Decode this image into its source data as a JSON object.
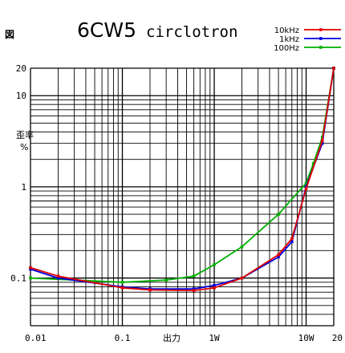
{
  "corner_mark": "図",
  "colors": {
    "10kHz": "#e00000",
    "1kHz": "#0000e0",
    "100Hz": "#00b000"
  },
  "chart_data": {
    "type": "line",
    "title": "6CW5",
    "subtitle": "circlotron",
    "xlabel": "出力",
    "ylabel_top": "歪率",
    "ylabel_unit": "%",
    "xscale": "log",
    "yscale": "log",
    "xlim": [
      0.01,
      20
    ],
    "ylim": [
      0.03,
      20
    ],
    "grid": true,
    "legend_position": "top-right",
    "x_tick_labels": [
      {
        "v": 0.01,
        "t": "0.01"
      },
      {
        "v": 0.1,
        "t": "0.1"
      },
      {
        "v": 1,
        "t": "1W"
      },
      {
        "v": 10,
        "t": "10W"
      },
      {
        "v": 20,
        "t": "20"
      }
    ],
    "y_tick_labels": [
      {
        "v": 0.1,
        "t": "0.1"
      },
      {
        "v": 1,
        "t": "1"
      },
      {
        "v": 10,
        "t": "10"
      },
      {
        "v": 20,
        "t": "20"
      }
    ],
    "series": [
      {
        "name": "10kHz",
        "color": "#e00000",
        "x": [
          0.01,
          0.02,
          0.1,
          0.2,
          0.6,
          1,
          2,
          5,
          7,
          10,
          15,
          20
        ],
        "y": [
          0.13,
          0.105,
          0.078,
          0.074,
          0.073,
          0.078,
          0.1,
          0.18,
          0.27,
          0.95,
          3.2,
          20
        ]
      },
      {
        "name": "1kHz",
        "color": "#0000e0",
        "x": [
          0.01,
          0.02,
          0.1,
          0.2,
          0.6,
          1,
          2,
          5,
          7,
          10,
          15,
          20
        ],
        "y": [
          0.125,
          0.1,
          0.08,
          0.076,
          0.076,
          0.083,
          0.1,
          0.17,
          0.25,
          1.0,
          3.0,
          20
        ]
      },
      {
        "name": "100Hz",
        "color": "#00b000",
        "x": [
          0.01,
          0.1,
          0.3,
          0.6,
          1,
          2,
          5,
          10,
          12,
          15,
          20
        ],
        "y": [
          0.1,
          0.09,
          0.095,
          0.105,
          0.14,
          0.22,
          0.5,
          1.1,
          1.8,
          3.5,
          20
        ]
      }
    ]
  }
}
